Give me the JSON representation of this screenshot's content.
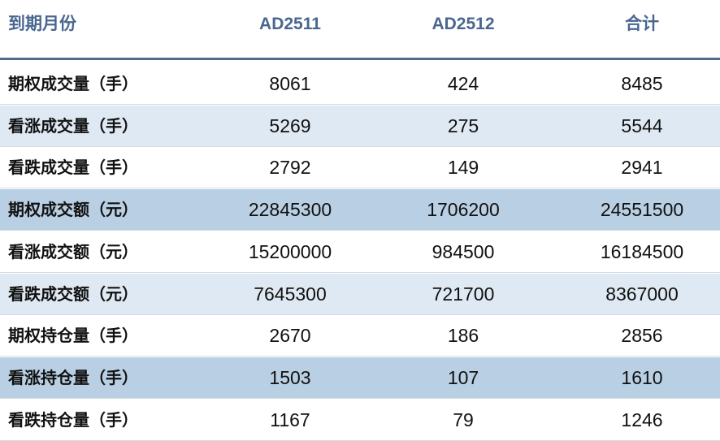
{
  "table": {
    "header": [
      "到期月份",
      "AD2511",
      "AD2512",
      "合计"
    ],
    "rows": [
      [
        "期权成交量（手）",
        8061,
        424,
        8485
      ],
      [
        "看涨成交量（手）",
        5269,
        275,
        5544
      ],
      [
        "看跌成交量（手）",
        2792,
        149,
        2941
      ],
      [
        "期权成交额（元）",
        22845300,
        1706200,
        24551500
      ],
      [
        "看涨成交额（元）",
        15200000,
        984500,
        16184500
      ],
      [
        "看跌成交额（元）",
        7645300,
        721700,
        8367000
      ],
      [
        "期权持仓量（手）",
        2670,
        186,
        2856
      ],
      [
        "看涨持仓量（手）",
        1503,
        107,
        1610
      ],
      [
        "看跌持仓量（手）",
        1167,
        79,
        1246
      ]
    ]
  }
}
